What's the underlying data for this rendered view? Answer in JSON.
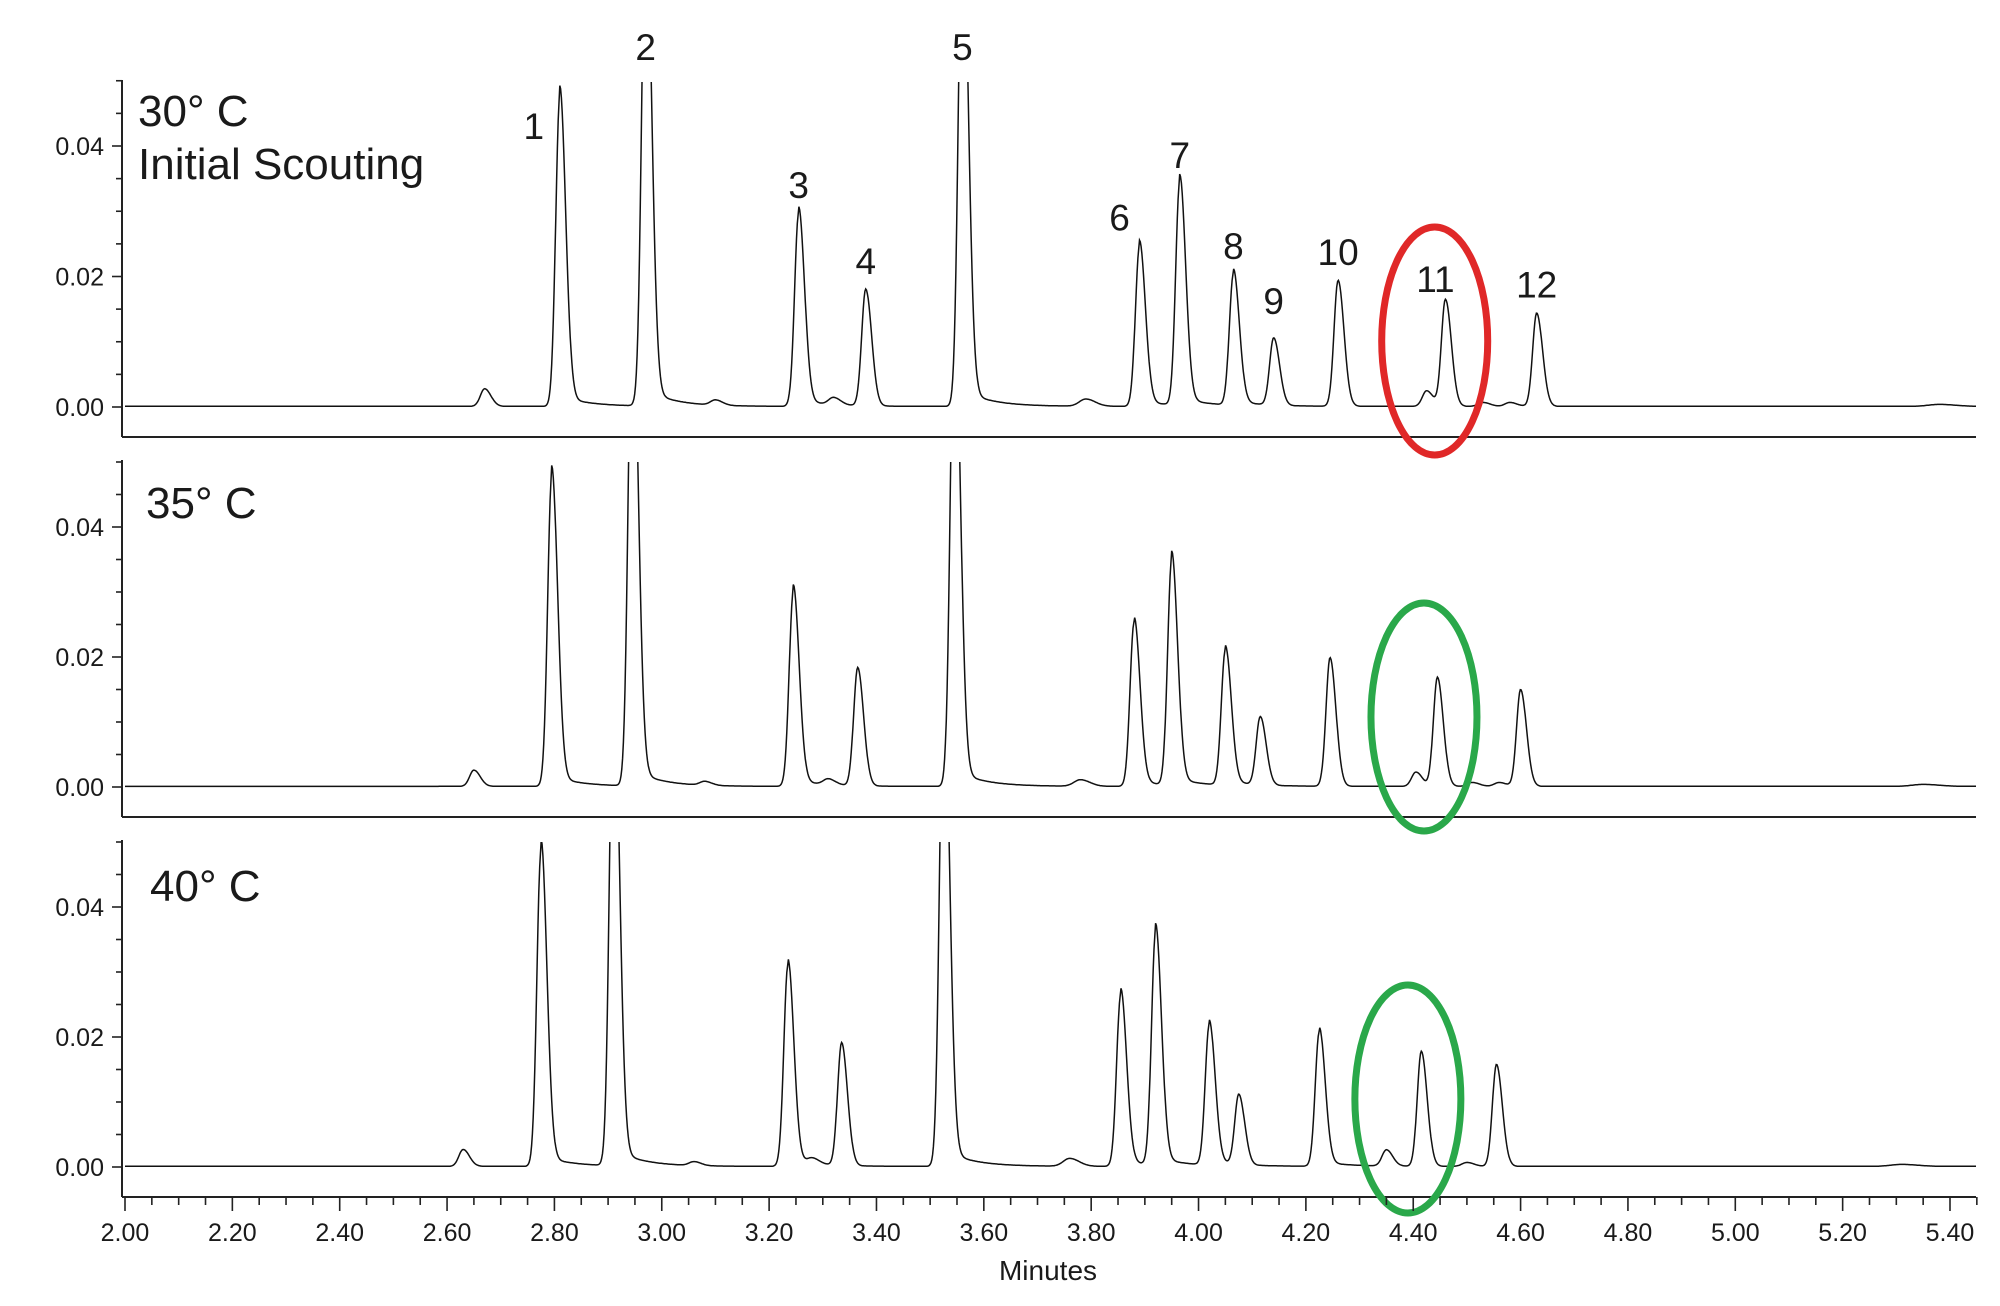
{
  "chart_data": {
    "type": "line",
    "title": "",
    "xlabel": "Minutes",
    "ylabel": "",
    "xlim": [
      2.0,
      5.5
    ],
    "ylim": [
      -0.006,
      0.05
    ],
    "x_ticks": [
      "2.00",
      "2.20",
      "2.40",
      "2.60",
      "2.80",
      "3.00",
      "3.20",
      "3.40",
      "3.60",
      "3.80",
      "4.00",
      "4.20",
      "4.40",
      "4.60",
      "4.80",
      "5.00",
      "5.20",
      "5.40"
    ],
    "y_ticks": [
      "0.00",
      "0.02",
      "0.04"
    ],
    "panels": [
      {
        "label_lines": [
          "30° C",
          "Initial Scouting"
        ],
        "highlight": {
          "center_x": 4.44,
          "color": "#e02828"
        },
        "peaks": [
          {
            "x": 2.67,
            "h": 0.0027,
            "w": 0.008
          },
          {
            "x": 2.81,
            "h": 0.0475,
            "w": 0.0075,
            "label": "1"
          },
          {
            "x": 2.97,
            "h": 0.075,
            "w": 0.0075,
            "label": "2"
          },
          {
            "x": 3.1,
            "h": 0.0008,
            "w": 0.009
          },
          {
            "x": 3.255,
            "h": 0.0296,
            "w": 0.0075,
            "label": "3"
          },
          {
            "x": 3.32,
            "h": 0.0011,
            "w": 0.009
          },
          {
            "x": 3.38,
            "h": 0.0179,
            "w": 0.0075,
            "label": "4"
          },
          {
            "x": 3.56,
            "h": 0.075,
            "w": 0.0075,
            "label": "5"
          },
          {
            "x": 3.79,
            "h": 0.0011,
            "w": 0.012
          },
          {
            "x": 3.89,
            "h": 0.0246,
            "w": 0.0075,
            "label": "6"
          },
          {
            "x": 3.965,
            "h": 0.0342,
            "w": 0.0075,
            "label": "7"
          },
          {
            "x": 4.065,
            "h": 0.0202,
            "w": 0.0075,
            "label": "8"
          },
          {
            "x": 4.14,
            "h": 0.0103,
            "w": 0.0075,
            "label": "9"
          },
          {
            "x": 4.26,
            "h": 0.0193,
            "w": 0.0075,
            "label": "10"
          },
          {
            "x": 4.425,
            "h": 0.0024,
            "w": 0.008
          },
          {
            "x": 4.46,
            "h": 0.0164,
            "w": 0.0075,
            "label": "11"
          },
          {
            "x": 4.53,
            "h": 0.0006,
            "w": 0.009
          },
          {
            "x": 4.58,
            "h": 0.0006,
            "w": 0.009
          },
          {
            "x": 4.63,
            "h": 0.0143,
            "w": 0.0075,
            "label": "12"
          },
          {
            "x": 5.38,
            "h": 0.0003,
            "w": 0.02
          }
        ]
      },
      {
        "label_lines": [
          "35° C"
        ],
        "highlight": {
          "center_x": 4.42,
          "color": "#2aa84a"
        },
        "peaks": [
          {
            "x": 2.65,
            "h": 0.0025,
            "w": 0.008
          },
          {
            "x": 2.795,
            "h": 0.0477,
            "w": 0.0075
          },
          {
            "x": 2.945,
            "h": 0.075,
            "w": 0.0075
          },
          {
            "x": 3.08,
            "h": 0.0006,
            "w": 0.009
          },
          {
            "x": 3.245,
            "h": 0.03,
            "w": 0.0075
          },
          {
            "x": 3.31,
            "h": 0.0009,
            "w": 0.009
          },
          {
            "x": 3.365,
            "h": 0.0182,
            "w": 0.0075
          },
          {
            "x": 3.545,
            "h": 0.075,
            "w": 0.0075
          },
          {
            "x": 3.78,
            "h": 0.001,
            "w": 0.012
          },
          {
            "x": 3.88,
            "h": 0.0252,
            "w": 0.0075
          },
          {
            "x": 3.95,
            "h": 0.0348,
            "w": 0.0075
          },
          {
            "x": 4.05,
            "h": 0.0208,
            "w": 0.0075
          },
          {
            "x": 4.115,
            "h": 0.0105,
            "w": 0.0075
          },
          {
            "x": 4.245,
            "h": 0.0198,
            "w": 0.0075
          },
          {
            "x": 4.405,
            "h": 0.0022,
            "w": 0.008
          },
          {
            "x": 4.445,
            "h": 0.0168,
            "w": 0.0075
          },
          {
            "x": 4.51,
            "h": 0.0006,
            "w": 0.009
          },
          {
            "x": 4.56,
            "h": 0.0006,
            "w": 0.009
          },
          {
            "x": 4.6,
            "h": 0.0149,
            "w": 0.0075
          },
          {
            "x": 5.35,
            "h": 0.0003,
            "w": 0.02
          }
        ]
      },
      {
        "label_lines": [
          "40° C"
        ],
        "highlight": {
          "center_x": 4.39,
          "color": "#2aa84a"
        },
        "peaks": [
          {
            "x": 2.63,
            "h": 0.0026,
            "w": 0.008
          },
          {
            "x": 2.775,
            "h": 0.0487,
            "w": 0.0075
          },
          {
            "x": 2.91,
            "h": 0.075,
            "w": 0.0075
          },
          {
            "x": 3.06,
            "h": 0.0006,
            "w": 0.009
          },
          {
            "x": 3.235,
            "h": 0.0309,
            "w": 0.0075
          },
          {
            "x": 3.28,
            "h": 0.0009,
            "w": 0.009
          },
          {
            "x": 3.335,
            "h": 0.0189,
            "w": 0.0075
          },
          {
            "x": 3.525,
            "h": 0.075,
            "w": 0.0075
          },
          {
            "x": 3.76,
            "h": 0.0012,
            "w": 0.012
          },
          {
            "x": 3.855,
            "h": 0.0265,
            "w": 0.0075
          },
          {
            "x": 3.92,
            "h": 0.0359,
            "w": 0.0075
          },
          {
            "x": 4.02,
            "h": 0.0216,
            "w": 0.0075
          },
          {
            "x": 4.075,
            "h": 0.0108,
            "w": 0.0075
          },
          {
            "x": 4.225,
            "h": 0.0207,
            "w": 0.0075
          },
          {
            "x": 4.35,
            "h": 0.0025,
            "w": 0.008
          },
          {
            "x": 4.415,
            "h": 0.0177,
            "w": 0.0075
          },
          {
            "x": 4.5,
            "h": 0.0006,
            "w": 0.009
          },
          {
            "x": 4.555,
            "h": 0.0157,
            "w": 0.0075
          },
          {
            "x": 5.31,
            "h": 0.0003,
            "w": 0.02
          }
        ]
      }
    ]
  }
}
